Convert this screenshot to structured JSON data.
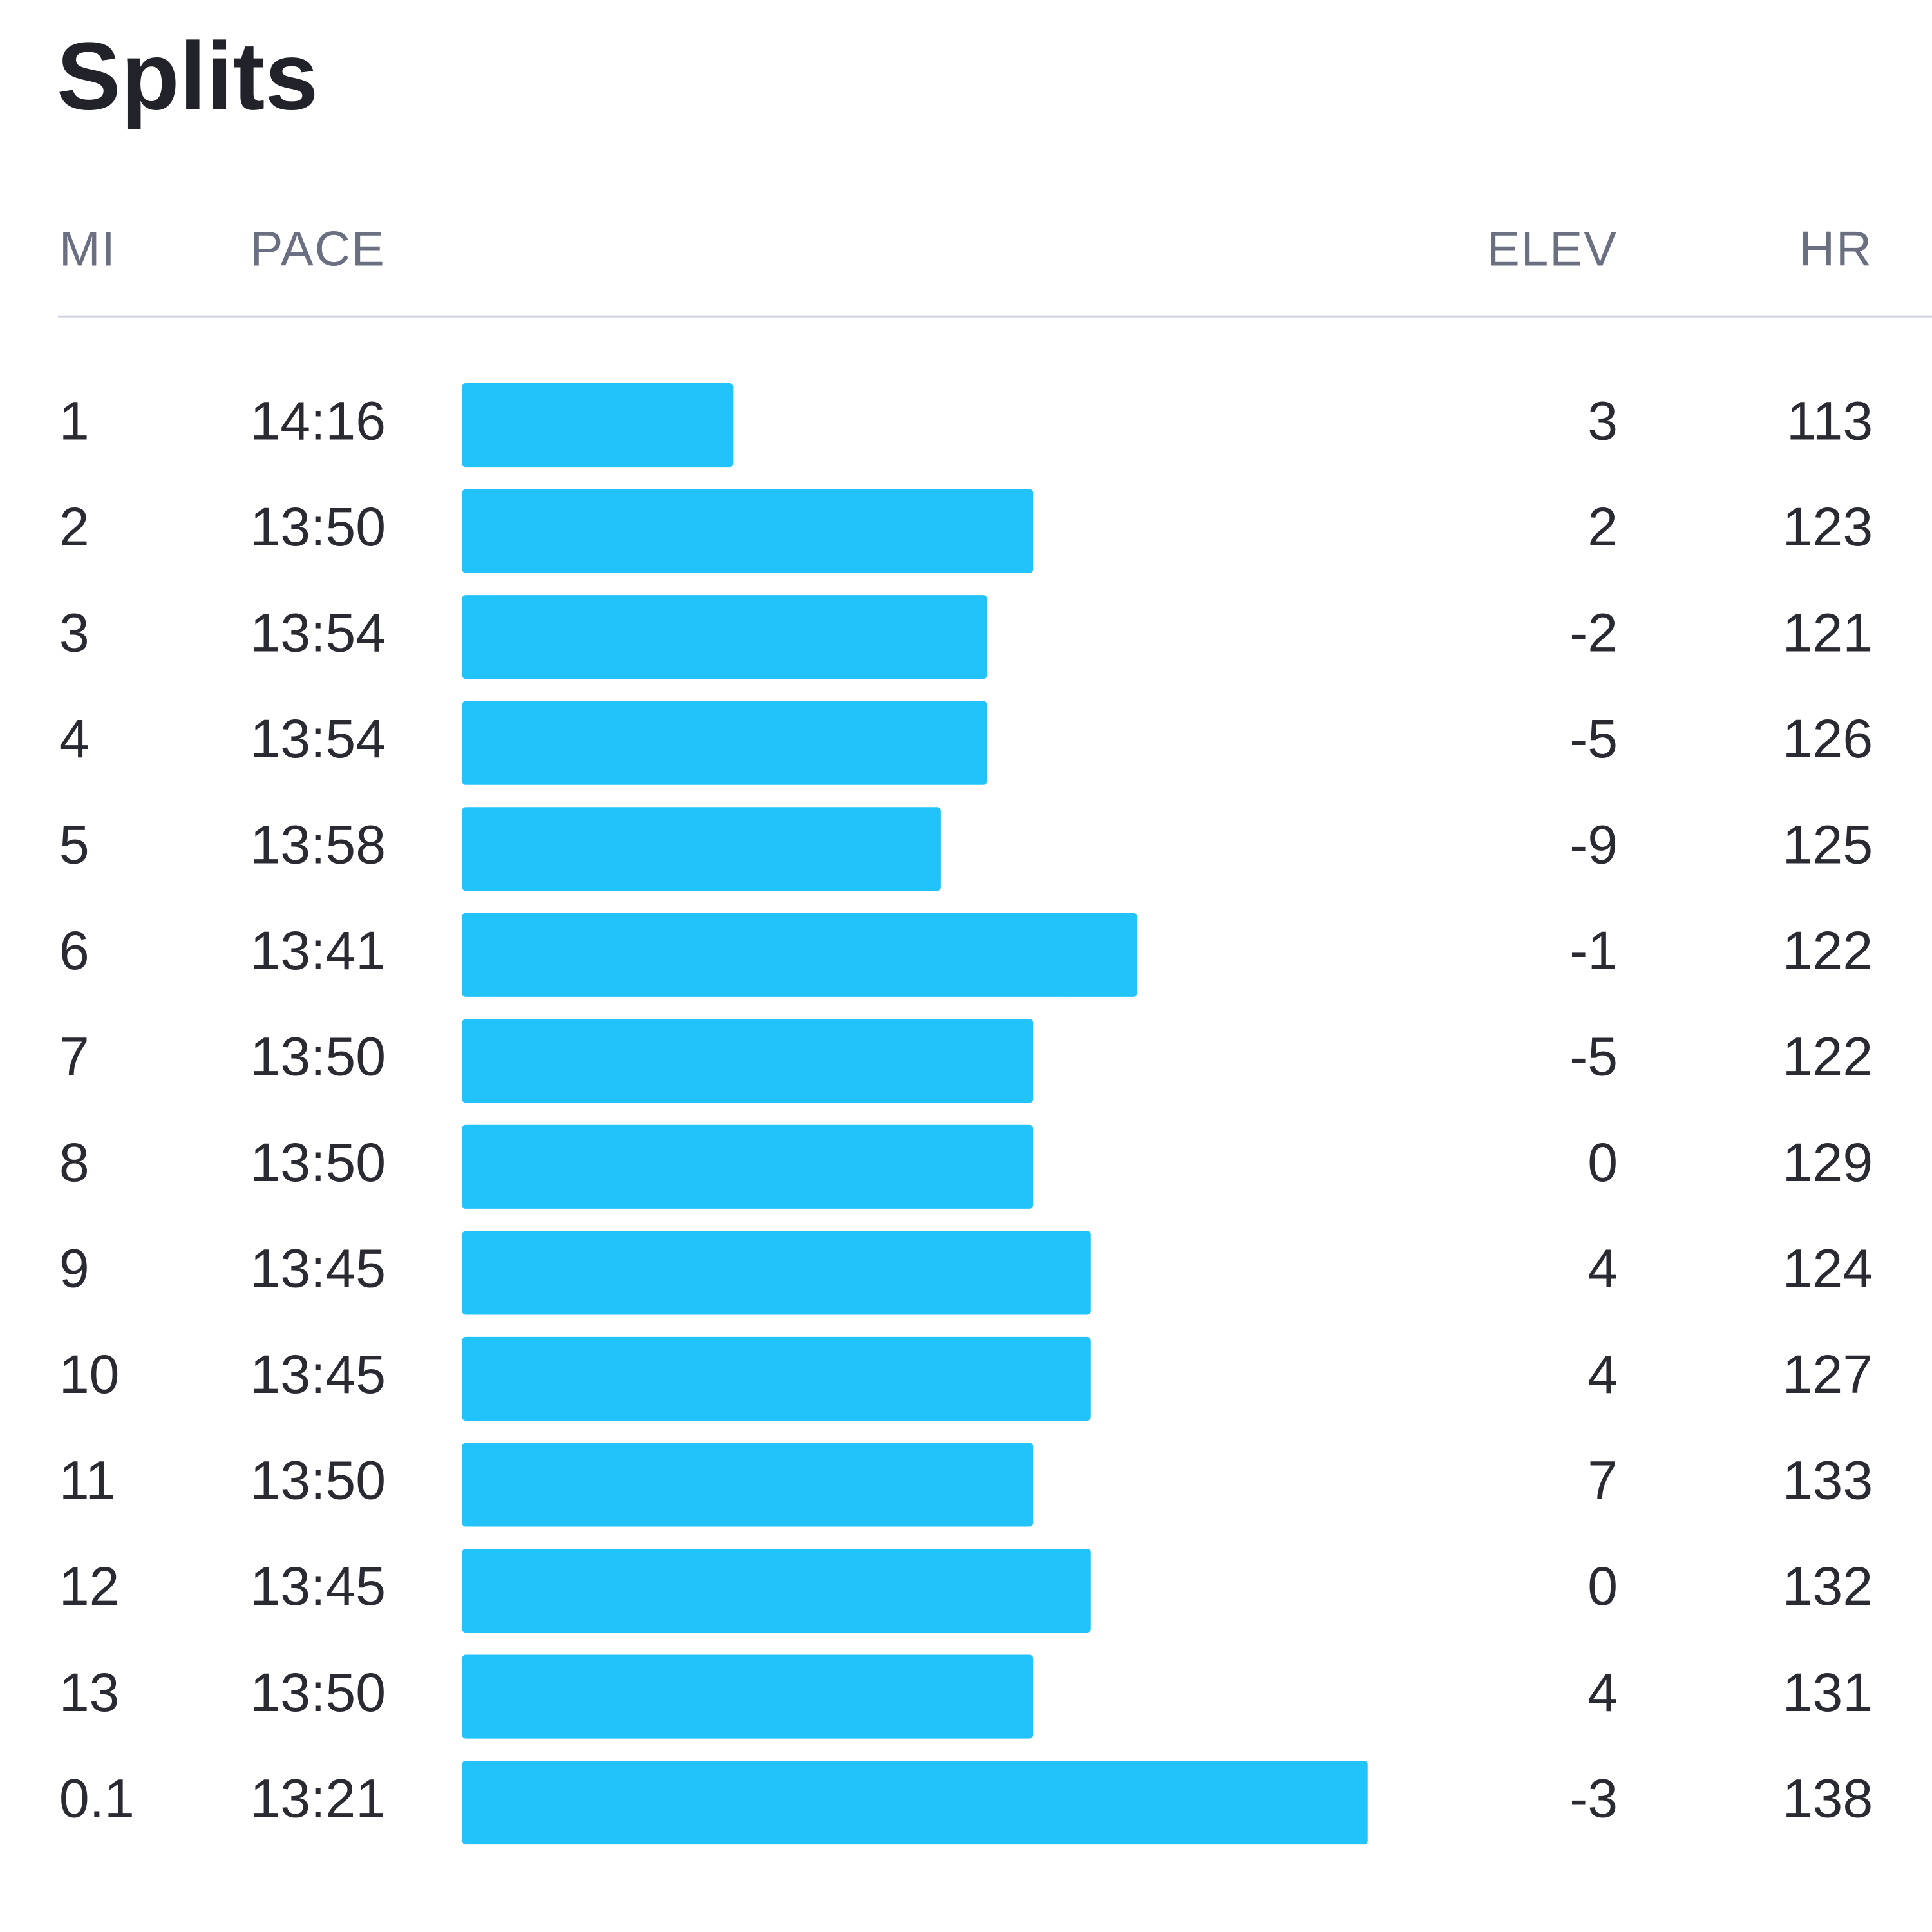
{
  "title": "Splits",
  "table": {
    "columns": [
      "MI",
      "PACE",
      "ELEV",
      "HR"
    ],
    "rows": [
      [
        1,
        "14:16",
        3,
        113
      ],
      [
        2,
        "13:50",
        2,
        123
      ],
      [
        3,
        "13:54",
        -2,
        121
      ],
      [
        4,
        "13:54",
        -5,
        126
      ],
      [
        5,
        "13:58",
        -9,
        125
      ],
      [
        6,
        "13:41",
        -1,
        122
      ],
      [
        7,
        "13:50",
        -5,
        122
      ],
      [
        8,
        "13:50",
        0,
        129
      ],
      [
        9,
        "13:45",
        4,
        124
      ],
      [
        10,
        "13:45",
        4,
        127
      ],
      [
        11,
        "13:50",
        7,
        133
      ],
      [
        12,
        "13:45",
        0,
        132
      ],
      [
        13,
        "13:50",
        4,
        131
      ],
      [
        0.1,
        "13:21",
        -3,
        138
      ]
    ]
  }
}
